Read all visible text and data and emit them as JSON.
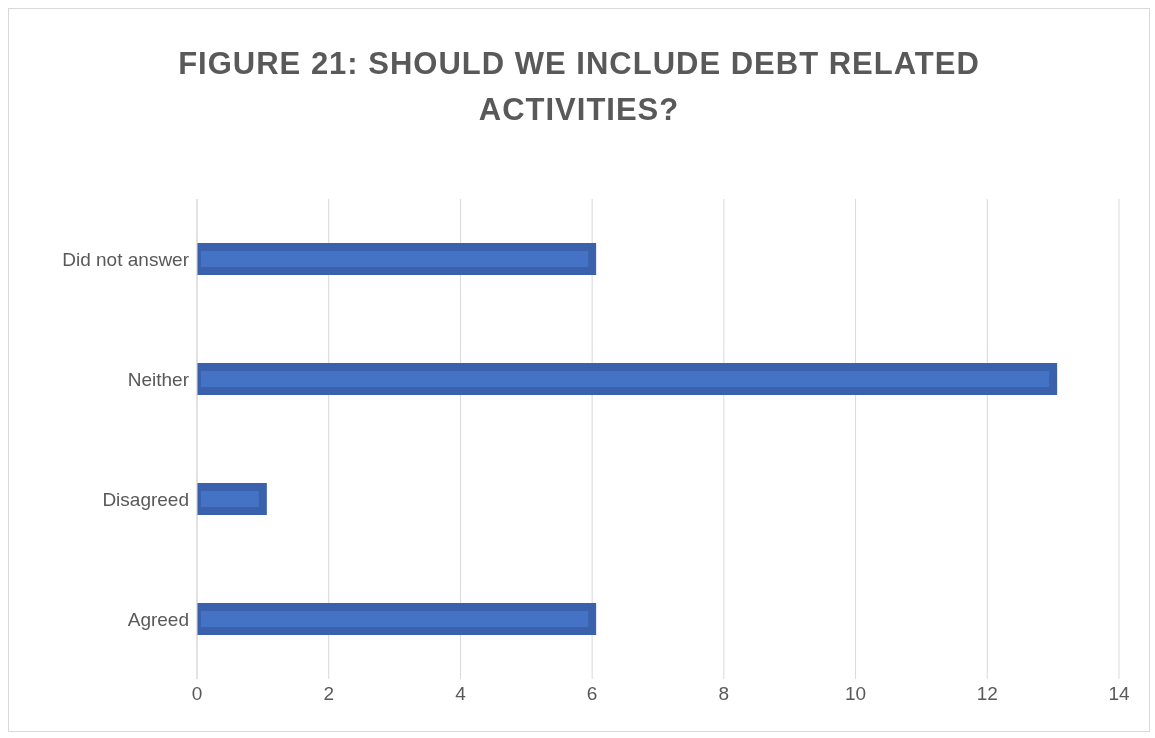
{
  "chart_data": {
    "type": "bar",
    "orientation": "horizontal",
    "title": "FIGURE 21: SHOULD WE INCLUDE DEBT RELATED ACTIVITIES?",
    "categories": [
      "Did not answer",
      "Neither",
      "Disagreed",
      "Agreed"
    ],
    "values": [
      6,
      13,
      1,
      6
    ],
    "color": "#4472c4",
    "xlim": [
      0,
      14
    ],
    "xticks": [
      0,
      2,
      4,
      6,
      8,
      10,
      12,
      14
    ],
    "grid": "x"
  }
}
